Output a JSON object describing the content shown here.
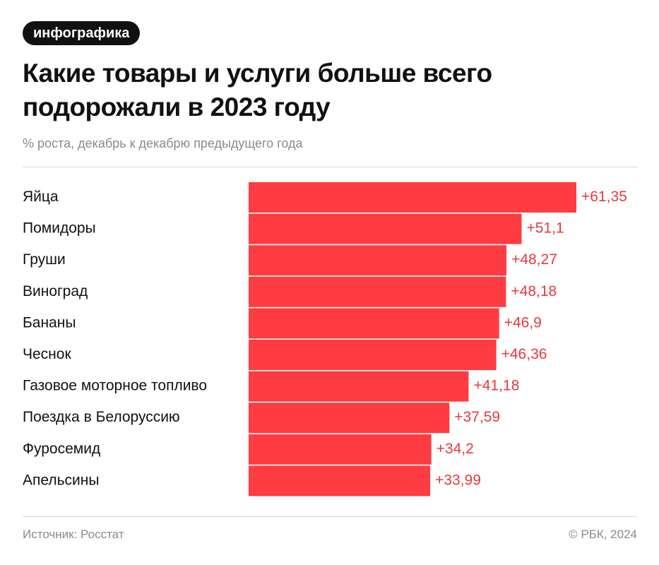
{
  "chart_data": {
    "type": "bar",
    "orientation": "horizontal",
    "badge": "инфографика",
    "title": "Какие товары и услуги больше всего подорожали в 2023 году",
    "subtitle": "% роста, декабрь к декабрю предыдущего года",
    "categories": [
      "Яйца",
      "Помидоры",
      "Груши",
      "Виноград",
      "Бананы",
      "Чеснок",
      "Газовое моторное топливо",
      "Поездка в Белоруссию",
      "Фуросемид",
      "Апельсины"
    ],
    "values": [
      61.35,
      51.1,
      48.27,
      48.18,
      46.9,
      46.36,
      41.18,
      37.59,
      34.2,
      33.99
    ],
    "value_labels": [
      "+61,35",
      "+51,1",
      "+48,27",
      "+48,18",
      "+46,9",
      "+46,36",
      "+41,18",
      "+37,59",
      "+34,2",
      "+33,99"
    ],
    "color": "#fe3c41",
    "label_color": "#e8383d",
    "source": "Источник: Росстат",
    "copyright": "© РБК, 2024"
  }
}
